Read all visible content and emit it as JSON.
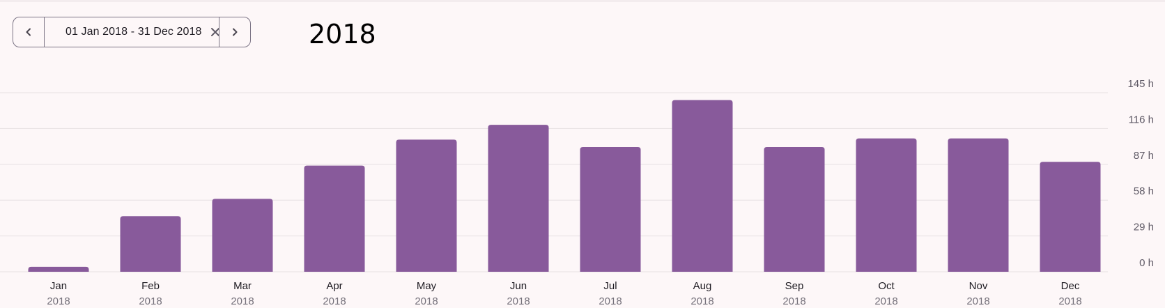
{
  "toolbar": {
    "prev_icon": "chevron-left-icon",
    "next_icon": "chevron-right-icon",
    "calendar_icon": "calendar-icon",
    "clear_icon": "close-icon",
    "date_range": "01 Jan 2018 - 31 Dec 2018"
  },
  "page": {
    "title": "2018"
  },
  "colors": {
    "bar": "#885a9b",
    "grid": "#e6e0e2",
    "tick_label": "#5f5a66",
    "category_label": "#1e1b22",
    "year_label": "#74707a",
    "background": "#fdf7f8"
  },
  "chart_data": {
    "type": "bar",
    "categories": [
      "Jan",
      "Feb",
      "Mar",
      "Apr",
      "May",
      "Jun",
      "Jul",
      "Aug",
      "Sep",
      "Oct",
      "Nov",
      "Dec"
    ],
    "category_sublabels": [
      "2018",
      "2018",
      "2018",
      "2018",
      "2018",
      "2018",
      "2018",
      "2018",
      "2018",
      "2018",
      "2018",
      "2018"
    ],
    "values": [
      4,
      45,
      59,
      86,
      107,
      119,
      101,
      139,
      101,
      108,
      108,
      89
    ],
    "unit": "h",
    "y_ticks": [
      0,
      29,
      58,
      87,
      116,
      145
    ],
    "y_tick_labels": [
      "0 h",
      "29 h",
      "58 h",
      "87 h",
      "116 h",
      "145 h"
    ],
    "ylim": [
      0,
      145
    ],
    "grid": true,
    "y_axis_position": "right",
    "legend": "none",
    "title": "",
    "xlabel": "",
    "ylabel": ""
  }
}
